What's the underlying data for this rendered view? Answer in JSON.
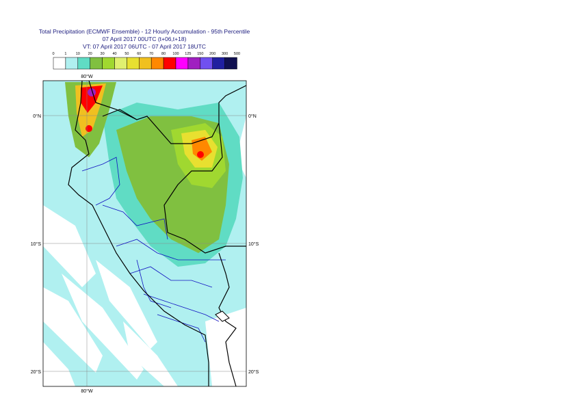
{
  "header": {
    "title": "Total Precipitation (ECMWF Ensemble) - 12 Hourly Accumulation - 95th Percentile",
    "line2": "07 April 2017 00UTC (t+06,t+18)",
    "line3": "VT: 07 April 2017 06UTC - 07 April 2017 18UTC"
  },
  "legend": {
    "levels": [
      0,
      1,
      10,
      20,
      30,
      40,
      50,
      60,
      70,
      80,
      100,
      125,
      150,
      200,
      300,
      500
    ],
    "colors": [
      "#ffffff",
      "#b0f0f0",
      "#60dcc4",
      "#80c040",
      "#a0d830",
      "#e0f070",
      "#e8e030",
      "#f0c020",
      "#ff8800",
      "#ff0000",
      "#ff00ff",
      "#a020c0",
      "#7050f0",
      "#2020a0",
      "#101050"
    ]
  },
  "map": {
    "lon_labels": [
      "80°W"
    ],
    "lat_labels": [
      "0°N",
      "10°S",
      "20°S"
    ]
  }
}
